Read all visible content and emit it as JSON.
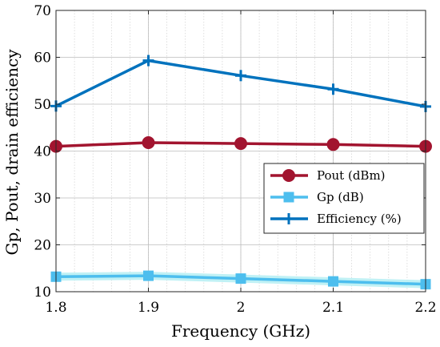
{
  "chart_data": {
    "type": "line",
    "title": "",
    "xlabel": "Frequency (GHz)",
    "ylabel": "Gp, Pout, drain efficiency",
    "x": [
      1.8,
      1.9,
      2.0,
      2.1,
      2.2
    ],
    "x_tick_labels": [
      "1.8",
      "1.9",
      "2",
      "2.1",
      "2.2"
    ],
    "y_tick_labels": [
      "10",
      "20",
      "30",
      "40",
      "50",
      "60",
      "70"
    ],
    "xlim": [
      1.8,
      2.2
    ],
    "ylim": [
      10,
      70
    ],
    "grid": true,
    "legend_position": "right",
    "series": [
      {
        "name": "Pout (dBm)",
        "values": [
          41.0,
          41.8,
          41.6,
          41.4,
          41.0
        ],
        "color": "#a2142f",
        "marker": "circle"
      },
      {
        "name": "Gp (dB)",
        "values": [
          13.2,
          13.4,
          12.8,
          12.2,
          11.6
        ],
        "color": "#4dbeee",
        "marker": "square"
      },
      {
        "name": "Efficiency (%)",
        "values": [
          49.6,
          59.3,
          56.1,
          53.2,
          49.5
        ],
        "color": "#0072bd",
        "marker": "plus"
      }
    ]
  }
}
